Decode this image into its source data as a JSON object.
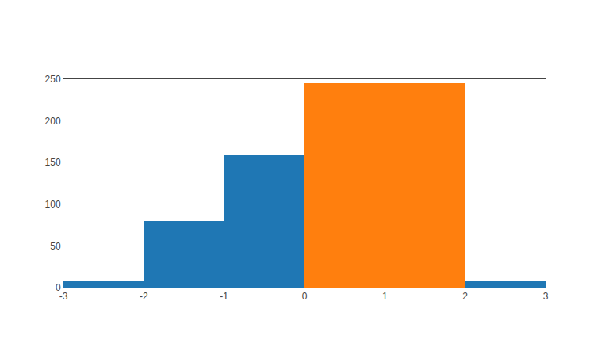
{
  "chart_data": {
    "type": "histogram",
    "bins": [
      -3,
      -2,
      -1,
      0,
      2,
      3
    ],
    "values": [
      8,
      80,
      160,
      245,
      8
    ],
    "colors": [
      "#1f77b4",
      "#1f77b4",
      "#1f77b4",
      "#ff7f0e",
      "#1f77b4"
    ],
    "xlim": [
      -3,
      3
    ],
    "ylim": [
      0,
      250
    ],
    "xticks": [
      -3,
      -2,
      -1,
      0,
      1,
      2,
      3
    ],
    "yticks": [
      0,
      50,
      100,
      150,
      200,
      250
    ],
    "grid": false
  }
}
